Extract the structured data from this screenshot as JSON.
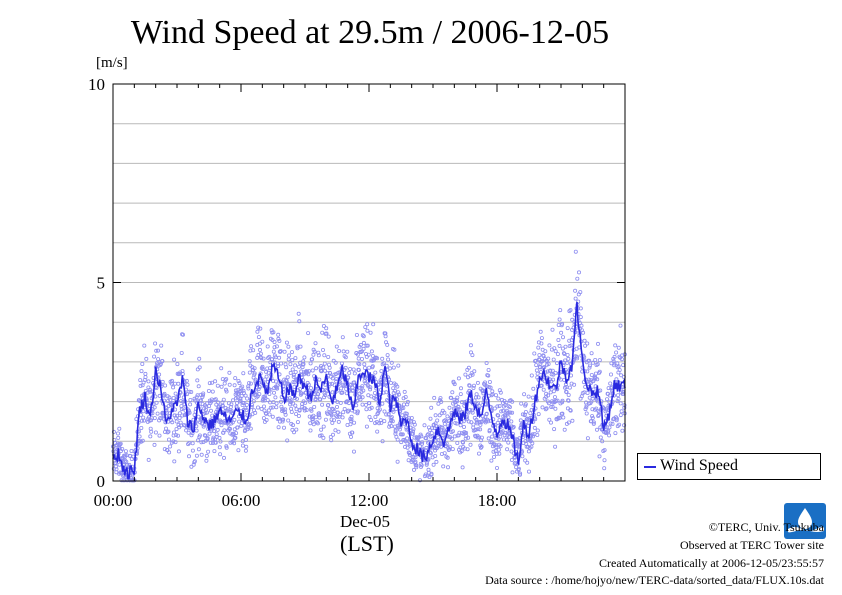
{
  "chart_data": {
    "type": "scatter",
    "title": "Wind Speed at 29.5m / 2006-12-05",
    "ylabel": "[m/s]",
    "xlabel": "(LST)",
    "date_label": "Dec-05",
    "ylim": [
      0,
      10
    ],
    "xlim_hours": [
      0,
      24
    ],
    "y_ticks": [
      "0",
      "5",
      "10"
    ],
    "x_ticks": [
      "00:00",
      "06:00",
      "12:00",
      "18:00"
    ],
    "grid": true,
    "legend_position": "right",
    "series": [
      {
        "name": "Wind Speed",
        "color": "#2a2adf",
        "point_color": "#8e8ef0",
        "x_hours": [
          0.0,
          0.25,
          0.5,
          0.75,
          1.0,
          1.25,
          1.5,
          1.75,
          2.0,
          2.25,
          2.5,
          2.75,
          3.0,
          3.25,
          3.5,
          3.75,
          4.0,
          4.25,
          4.5,
          4.75,
          5.0,
          5.25,
          5.5,
          5.75,
          6.0,
          6.25,
          6.5,
          6.75,
          7.0,
          7.25,
          7.5,
          7.75,
          8.0,
          8.25,
          8.5,
          8.75,
          9.0,
          9.25,
          9.5,
          9.75,
          10.0,
          10.25,
          10.5,
          10.75,
          11.0,
          11.25,
          11.5,
          11.75,
          12.0,
          12.25,
          12.5,
          12.75,
          13.0,
          13.25,
          13.5,
          13.75,
          14.0,
          14.25,
          14.5,
          14.75,
          15.0,
          15.25,
          15.5,
          15.75,
          16.0,
          16.25,
          16.5,
          16.75,
          17.0,
          17.25,
          17.5,
          17.75,
          18.0,
          18.25,
          18.5,
          18.75,
          19.0,
          19.25,
          19.5,
          19.75,
          20.0,
          20.25,
          20.5,
          20.75,
          21.0,
          21.25,
          21.5,
          21.75,
          22.0,
          22.25,
          22.5,
          22.75,
          23.0,
          23.25,
          23.5,
          23.75
        ],
        "values": [
          0.6,
          0.7,
          0.3,
          0.2,
          0.3,
          1.8,
          2.1,
          1.6,
          2.8,
          2.3,
          1.4,
          1.8,
          1.9,
          2.6,
          1.5,
          1.3,
          1.9,
          1.6,
          1.4,
          1.5,
          1.8,
          1.6,
          1.5,
          1.7,
          1.7,
          1.5,
          2.2,
          2.6,
          2.5,
          2.2,
          2.9,
          2.6,
          2.1,
          2.3,
          2.2,
          2.6,
          2.4,
          2.1,
          2.5,
          2.3,
          2.6,
          2.0,
          2.3,
          2.8,
          2.4,
          1.7,
          2.6,
          2.8,
          2.6,
          2.5,
          2.0,
          2.9,
          1.9,
          2.1,
          1.4,
          1.6,
          1.0,
          0.8,
          0.6,
          0.7,
          1.1,
          1.3,
          1.0,
          1.3,
          1.8,
          1.5,
          1.7,
          2.2,
          1.9,
          1.6,
          2.2,
          1.6,
          1.2,
          1.6,
          1.4,
          1.0,
          0.5,
          1.4,
          1.2,
          1.9,
          2.6,
          2.7,
          2.4,
          2.3,
          3.0,
          2.6,
          2.9,
          4.4,
          3.0,
          2.4,
          2.2,
          2.3,
          1.3,
          1.7,
          2.4,
          2.4
        ]
      }
    ]
  },
  "credits": {
    "copyright": "©TERC, Univ. Tsukuba",
    "site": "Observed at TERC Tower site",
    "created": "Created Automatically at 2006-12-05/23:55:57",
    "source": "Data source : /home/hojyo/new/TERC-data/sorted_data/FLUX.10s.dat"
  },
  "logo": {
    "text": "TERC",
    "color": "#1a6fc4"
  }
}
